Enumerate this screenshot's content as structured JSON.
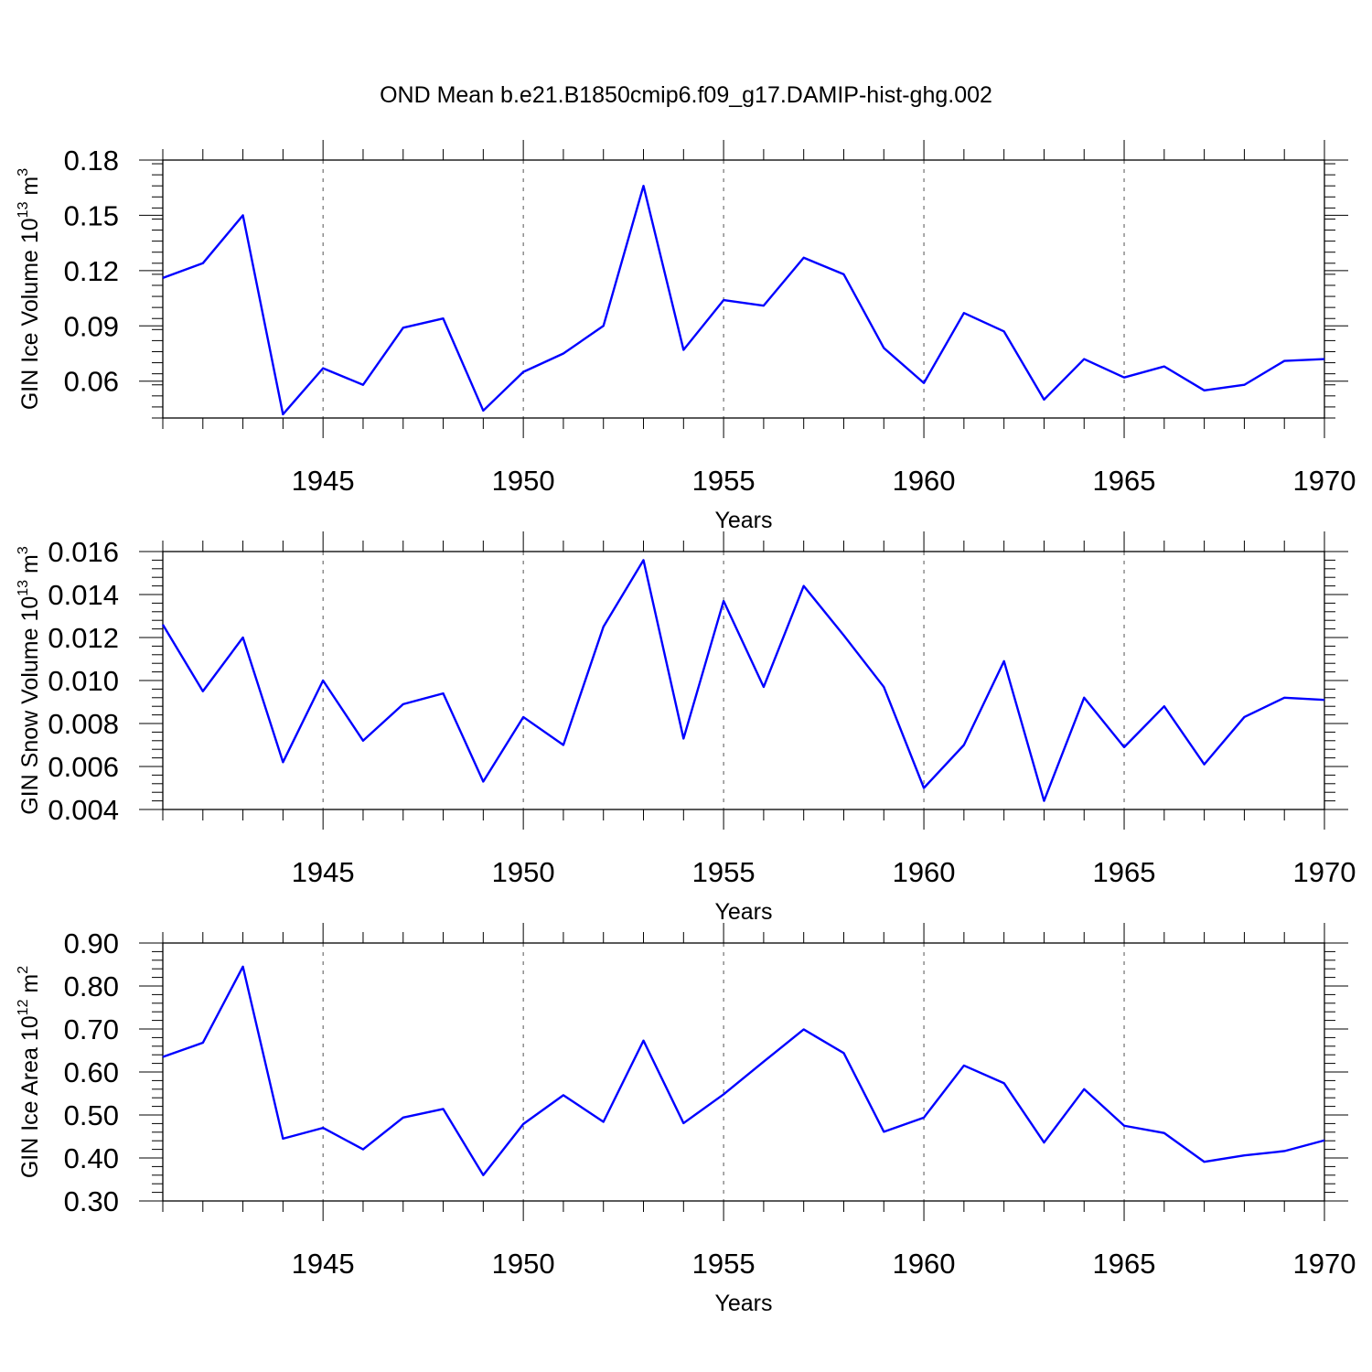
{
  "figure": {
    "title": "OND Mean b.e21.B1850cmip6.f09_g17.DAMIP-hist-ghg.002",
    "line_color": "#0000ff"
  },
  "chart_data": [
    {
      "type": "line",
      "title": "",
      "xlabel": "Years",
      "ylabel": {
        "text": "GIN Ice Volume 10",
        "exp": "13",
        "unit": " m",
        "unit_exp": "3"
      },
      "xlim": [
        1941,
        1970
      ],
      "ylim": [
        0.04,
        0.18
      ],
      "xticks": [
        1945,
        1950,
        1955,
        1960,
        1965,
        1970
      ],
      "yticks": [
        0.06,
        0.09,
        0.12,
        0.15,
        0.18
      ],
      "ytick_labels": [
        "0.06",
        "0.09",
        "0.12",
        "0.15",
        "0.18"
      ],
      "grid": "x-dashed",
      "x": [
        1941,
        1942,
        1943,
        1944,
        1945,
        1946,
        1947,
        1948,
        1949,
        1950,
        1951,
        1952,
        1953,
        1954,
        1955,
        1956,
        1957,
        1958,
        1959,
        1960,
        1961,
        1962,
        1963,
        1964,
        1965,
        1966,
        1967,
        1968,
        1969,
        1970
      ],
      "series": [
        {
          "values": [
            0.116,
            0.124,
            0.15,
            0.042,
            0.067,
            0.058,
            0.089,
            0.094,
            0.044,
            0.065,
            0.075,
            0.09,
            0.166,
            0.077,
            0.104,
            0.101,
            0.127,
            0.118,
            0.078,
            0.059,
            0.097,
            0.087,
            0.05,
            0.072,
            0.062,
            0.068,
            0.055,
            0.058,
            0.071,
            0.072
          ]
        }
      ]
    },
    {
      "type": "line",
      "title": "",
      "xlabel": "Years",
      "ylabel": {
        "text": "GIN Snow Volume 10",
        "exp": "13",
        "unit": " m",
        "unit_exp": "3"
      },
      "xlim": [
        1941,
        1970
      ],
      "ylim": [
        0.004,
        0.016
      ],
      "xticks": [
        1945,
        1950,
        1955,
        1960,
        1965,
        1970
      ],
      "yticks": [
        0.004,
        0.006,
        0.008,
        0.01,
        0.012,
        0.014,
        0.016
      ],
      "ytick_labels": [
        "0.004",
        "0.006",
        "0.008",
        "0.010",
        "0.012",
        "0.014",
        "0.016"
      ],
      "grid": "x-dashed",
      "x": [
        1941,
        1942,
        1943,
        1944,
        1945,
        1946,
        1947,
        1948,
        1949,
        1950,
        1951,
        1952,
        1953,
        1954,
        1955,
        1956,
        1957,
        1958,
        1959,
        1960,
        1961,
        1962,
        1963,
        1964,
        1965,
        1966,
        1967,
        1968,
        1969,
        1970
      ],
      "series": [
        {
          "values": [
            0.0126,
            0.0095,
            0.012,
            0.0062,
            0.01,
            0.0072,
            0.0089,
            0.0094,
            0.0053,
            0.0083,
            0.007,
            0.0125,
            0.0156,
            0.0073,
            0.0137,
            0.0097,
            0.0144,
            0.0121,
            0.0097,
            0.005,
            0.007,
            0.0109,
            0.0044,
            0.0092,
            0.0069,
            0.0088,
            0.0061,
            0.0083,
            0.0092,
            0.0091
          ]
        }
      ]
    },
    {
      "type": "line",
      "title": "",
      "xlabel": "Years",
      "ylabel": {
        "text": "GIN Ice Area 10",
        "exp": "12",
        "unit": " m",
        "unit_exp": "2"
      },
      "xlim": [
        1941,
        1970
      ],
      "ylim": [
        0.3,
        0.9
      ],
      "xticks": [
        1945,
        1950,
        1955,
        1960,
        1965,
        1970
      ],
      "yticks": [
        0.3,
        0.4,
        0.5,
        0.6,
        0.7,
        0.8,
        0.9
      ],
      "ytick_labels": [
        "0.30",
        "0.40",
        "0.50",
        "0.60",
        "0.70",
        "0.80",
        "0.90"
      ],
      "grid": "x-dashed",
      "x": [
        1941,
        1942,
        1943,
        1944,
        1945,
        1946,
        1947,
        1948,
        1949,
        1950,
        1951,
        1952,
        1953,
        1954,
        1955,
        1956,
        1957,
        1958,
        1959,
        1960,
        1961,
        1962,
        1963,
        1964,
        1965,
        1966,
        1967,
        1968,
        1969,
        1970
      ],
      "series": [
        {
          "values": [
            0.635,
            0.668,
            0.845,
            0.445,
            0.47,
            0.42,
            0.494,
            0.514,
            0.36,
            0.479,
            0.546,
            0.484,
            0.673,
            0.481,
            0.548,
            0.624,
            0.699,
            0.644,
            0.461,
            0.494,
            0.615,
            0.574,
            0.436,
            0.56,
            0.475,
            0.458,
            0.391,
            0.406,
            0.416,
            0.441
          ]
        }
      ]
    }
  ]
}
